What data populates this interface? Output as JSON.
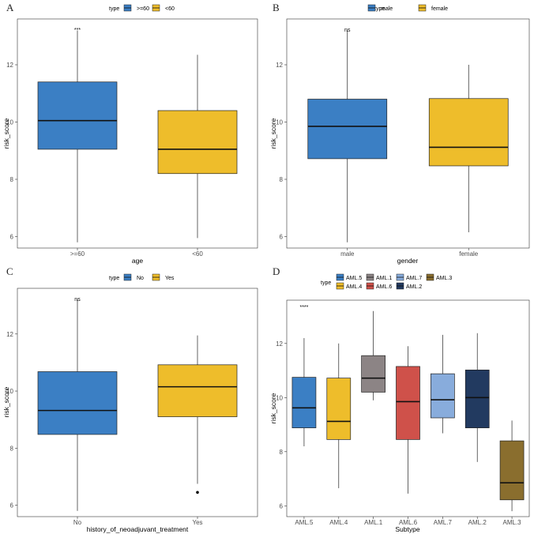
{
  "chart_data": [
    {
      "type": "boxplot",
      "panel": "A",
      "title": "",
      "xlabel": "age",
      "ylabel": "risk_score",
      "ylim": [
        5.6,
        13.6
      ],
      "yticks": [
        "6",
        "8",
        "10",
        "12"
      ],
      "legend_title": "type",
      "legend_position": "top",
      "significance": "***",
      "categories": [
        "&gt;=60",
        "&lt;60"
      ],
      "category_labels": [
        ">=60",
        "<60"
      ],
      "series": [
        {
          "name": ">=60",
          "color": "#3b7fc4",
          "min": 5.8,
          "q1": 9.05,
          "median": 10.05,
          "q3": 11.4,
          "max": 13.2,
          "outliers": []
        },
        {
          "name": "<60",
          "color": "#eebd2b",
          "min": 5.95,
          "q1": 8.2,
          "median": 9.05,
          "q3": 10.4,
          "max": 12.35,
          "outliers": []
        }
      ]
    },
    {
      "type": "boxplot",
      "panel": "B",
      "title": "",
      "xlabel": "gender",
      "ylabel": "risk_score",
      "ylim": [
        5.6,
        13.6
      ],
      "yticks": [
        "6",
        "8",
        "10",
        "12"
      ],
      "legend_title": "type",
      "legend_position": "top",
      "significance": "ns",
      "category_labels": [
        "male",
        "female"
      ],
      "series": [
        {
          "name": "male",
          "color": "#3b7fc4",
          "min": 5.8,
          "q1": 8.72,
          "median": 9.85,
          "q3": 10.8,
          "max": 13.2,
          "outliers": []
        },
        {
          "name": "female",
          "color": "#eebd2b",
          "min": 6.15,
          "q1": 8.47,
          "median": 9.12,
          "q3": 10.82,
          "max": 12.0,
          "outliers": []
        }
      ]
    },
    {
      "type": "boxplot",
      "panel": "C",
      "title": "",
      "xlabel": "history_of_neoadjuvant_treatment",
      "ylabel": "risk_score",
      "ylim": [
        5.6,
        13.6
      ],
      "yticks": [
        "6",
        "8",
        "10",
        "12"
      ],
      "legend_title": "type",
      "legend_position": "top",
      "significance": "ns",
      "category_labels": [
        "No",
        "Yes"
      ],
      "series": [
        {
          "name": "No",
          "color": "#3b7fc4",
          "min": 5.8,
          "q1": 8.48,
          "median": 9.32,
          "q3": 10.68,
          "max": 13.2,
          "outliers": []
        },
        {
          "name": "Yes",
          "color": "#eebd2b",
          "min": 6.75,
          "q1": 9.1,
          "median": 10.15,
          "q3": 10.92,
          "max": 11.95,
          "outliers": [
            6.45
          ]
        }
      ]
    },
    {
      "type": "boxplot",
      "panel": "D",
      "title": "",
      "xlabel": "Subtype",
      "ylabel": "risk_score",
      "ylim": [
        5.6,
        13.6
      ],
      "yticks": [
        "6",
        "8",
        "10",
        "12"
      ],
      "legend_title": "type",
      "legend_position": "top",
      "significance": "****",
      "category_labels": [
        "AML.5",
        "AML.4",
        "AML.1",
        "AML.6",
        "AML.7",
        "AML.2",
        "AML.3"
      ],
      "legend_order": [
        "AML.5",
        "AML.1",
        "AML.7",
        "AML.3",
        "AML.4",
        "AML.6",
        "AML.2"
      ],
      "series": [
        {
          "name": "AML.5",
          "color": "#3b7fc4",
          "min": 8.2,
          "q1": 8.88,
          "median": 9.62,
          "q3": 10.75,
          "max": 12.2,
          "outliers": []
        },
        {
          "name": "AML.4",
          "color": "#eebd2b",
          "min": 6.65,
          "q1": 8.45,
          "median": 9.12,
          "q3": 10.72,
          "max": 12.0,
          "outliers": []
        },
        {
          "name": "AML.1",
          "color": "#8c8485",
          "min": 9.9,
          "q1": 10.2,
          "median": 10.72,
          "q3": 11.55,
          "max": 13.2,
          "outliers": []
        },
        {
          "name": "AML.6",
          "color": "#cf514a",
          "min": 6.45,
          "q1": 8.45,
          "median": 9.85,
          "q3": 11.15,
          "max": 11.9,
          "outliers": []
        },
        {
          "name": "AML.7",
          "color": "#88acdc",
          "min": 8.68,
          "q1": 9.25,
          "median": 9.92,
          "q3": 10.88,
          "max": 12.32,
          "outliers": []
        },
        {
          "name": "AML.2",
          "color": "#223a60",
          "min": 7.62,
          "q1": 8.88,
          "median": 10.0,
          "q3": 11.02,
          "max": 12.38,
          "outliers": []
        },
        {
          "name": "AML.3",
          "color": "#8a6e2e",
          "min": 5.8,
          "q1": 6.22,
          "median": 6.85,
          "q3": 8.4,
          "max": 9.15,
          "outliers": []
        }
      ]
    }
  ]
}
